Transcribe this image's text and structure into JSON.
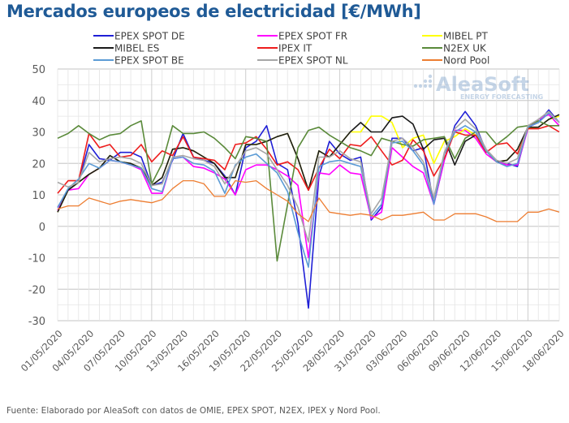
{
  "title": "Mercados europeos de electricidad [€/MWh]",
  "source": "Fuente: Elaborado por AleaSoft con datos de OMIE, EPEX SPOT, N2EX, IPEX y Nord Pool.",
  "watermark": {
    "brand": "AleaSoft",
    "tagline": "ENERGY FORECASTING"
  },
  "chart_data": {
    "type": "line",
    "title": "Mercados europeos de electricidad [€/MWh]",
    "xlabel": "",
    "ylabel": "",
    "ylim": [
      -30,
      50
    ],
    "yticks": [
      50,
      40,
      30,
      20,
      10,
      0,
      -10,
      -20,
      -30
    ],
    "grid": true,
    "legend_position": "top",
    "x": [
      "01/05/2020",
      "02/05/2020",
      "03/05/2020",
      "04/05/2020",
      "05/05/2020",
      "06/05/2020",
      "07/05/2020",
      "08/05/2020",
      "09/05/2020",
      "10/05/2020",
      "11/05/2020",
      "12/05/2020",
      "13/05/2020",
      "14/05/2020",
      "15/05/2020",
      "16/05/2020",
      "17/05/2020",
      "18/05/2020",
      "19/05/2020",
      "20/05/2020",
      "21/05/2020",
      "22/05/2020",
      "23/05/2020",
      "24/05/2020",
      "25/05/2020",
      "26/05/2020",
      "27/05/2020",
      "28/05/2020",
      "29/05/2020",
      "30/05/2020",
      "31/05/2020",
      "01/06/2020",
      "02/06/2020",
      "03/06/2020",
      "04/06/2020",
      "05/06/2020",
      "06/06/2020",
      "07/06/2020",
      "08/06/2020",
      "09/06/2020",
      "10/06/2020",
      "11/06/2020",
      "12/06/2020",
      "13/06/2020",
      "14/06/2020",
      "15/06/2020",
      "16/06/2020",
      "17/06/2020",
      "18/06/2020"
    ],
    "xtick_labels": [
      "01/05/2020",
      "04/05/2020",
      "07/05/2020",
      "10/05/2020",
      "13/05/2020",
      "16/05/2020",
      "19/05/2020",
      "22/05/2020",
      "25/05/2020",
      "28/05/2020",
      "31/05/2020",
      "03/06/2020",
      "06/06/2020",
      "09/06/2020",
      "12/06/2020",
      "15/06/2020",
      "18/06/2020"
    ],
    "series": [
      {
        "name": "EPEX SPOT DE",
        "color": "#1f1fd6",
        "values": [
          6,
          11.5,
          14,
          26,
          21.5,
          21,
          23.5,
          23.5,
          22,
          13,
          14,
          21,
          29.5,
          22,
          21,
          20,
          16,
          10,
          25,
          27,
          32,
          20,
          18,
          1,
          -26,
          16,
          27,
          23,
          21,
          22,
          2,
          6,
          28,
          28,
          24,
          25,
          7,
          21,
          32,
          36.5,
          32,
          24,
          20.5,
          20,
          19,
          31.5,
          33,
          37,
          33
        ]
      },
      {
        "name": "EPEX SPOT FR",
        "color": "#ff00ff",
        "values": [
          5,
          11.5,
          12,
          16.5,
          18.5,
          21,
          20.5,
          19.5,
          18,
          10.5,
          10.5,
          21.5,
          22,
          19,
          18.5,
          17,
          15,
          10,
          18,
          19.5,
          19.5,
          18,
          16,
          13,
          -10,
          17,
          16.5,
          19.5,
          17,
          16.5,
          2.5,
          4.5,
          25,
          22,
          19,
          17,
          7,
          21,
          30.5,
          30.5,
          28,
          23,
          20.5,
          19.5,
          19.5,
          31,
          34,
          35.5,
          32
        ]
      },
      {
        "name": "MIBEL PT",
        "color": "#ffff00",
        "values": [
          4.5,
          11.5,
          14,
          16.5,
          18.5,
          22.5,
          20.5,
          20,
          18.5,
          13,
          15.5,
          24.5,
          25,
          24,
          22,
          20,
          15.5,
          15.5,
          26,
          26,
          27,
          28.5,
          29.5,
          21.5,
          11.5,
          24,
          22,
          26,
          30,
          30,
          35,
          35,
          33,
          25,
          28,
          29,
          20,
          27,
          28.5,
          31,
          29,
          24,
          20.5,
          21,
          24.5,
          31,
          31.5,
          34,
          35
        ]
      },
      {
        "name": "MIBEL ES",
        "color": "#1a1a1a",
        "values": [
          4.5,
          11.5,
          14,
          16.5,
          18.5,
          22.5,
          20.5,
          20,
          18.5,
          13,
          15.5,
          24.5,
          25,
          24,
          22,
          20,
          15.5,
          15.5,
          26,
          26,
          27,
          28.5,
          29.5,
          21.5,
          11.5,
          24,
          22,
          26,
          30,
          33,
          30,
          30,
          34.5,
          35,
          32.5,
          24.5,
          27.5,
          28,
          19.5,
          27,
          29,
          24,
          20.5,
          21,
          24.5,
          31.5,
          31.5,
          34,
          35.5
        ]
      },
      {
        "name": "IPEX IT",
        "color": "#ee1c1c",
        "values": [
          10.5,
          14.5,
          14.5,
          29.5,
          25,
          26,
          22,
          22.5,
          26,
          20.5,
          24,
          22.5,
          28.5,
          22,
          21.5,
          21,
          18,
          26,
          26.5,
          28.5,
          24.5,
          19.5,
          20.5,
          18,
          11.5,
          18.5,
          24.5,
          21.5,
          26,
          25.5,
          28.5,
          24,
          19.5,
          21,
          27.5,
          24,
          16,
          21.5,
          30,
          29,
          29,
          23.5,
          26,
          26.5,
          23,
          31,
          31,
          32,
          30
        ]
      },
      {
        "name": "N2EX UK",
        "color": "#5a8a3a",
        "values": [
          28,
          29.5,
          32,
          29.5,
          27.5,
          29,
          29.5,
          32,
          33.5,
          13.5,
          20,
          32,
          29.5,
          29.5,
          30,
          28,
          25,
          21.5,
          28.5,
          28,
          27,
          -11,
          7,
          25,
          30.5,
          31.5,
          29,
          27,
          25,
          24,
          22.5,
          28,
          27,
          26,
          25.5,
          27.5,
          28,
          28.5,
          21.5,
          28,
          30,
          30,
          26,
          28.5,
          31.5,
          32,
          33.5,
          32,
          32
        ]
      },
      {
        "name": "EPEX SPOT BE",
        "color": "#5b9bd5",
        "values": [
          6,
          12,
          15,
          20,
          18.5,
          21,
          20.5,
          19.5,
          18.5,
          12,
          11,
          21.5,
          22,
          20,
          19.5,
          17.5,
          10.5,
          19.5,
          22,
          23,
          20,
          17,
          11,
          -2,
          -13,
          19,
          20.5,
          21,
          20,
          19,
          3,
          7,
          26.5,
          27,
          24,
          19.5,
          7,
          23,
          30,
          32,
          30,
          24,
          20.5,
          19,
          20,
          31.5,
          33,
          36,
          33
        ]
      },
      {
        "name": "EPEX SPOT NL",
        "color": "#a6a6a6",
        "values": [
          14,
          12.5,
          14,
          23.5,
          20.5,
          21.5,
          22,
          21.5,
          20,
          13,
          13.5,
          22,
          22.5,
          21.5,
          21,
          19,
          13.5,
          19,
          24,
          25,
          23,
          18,
          13,
          6,
          -5,
          22,
          22,
          24,
          21.5,
          20.5,
          4,
          9,
          27,
          28,
          25,
          20.5,
          9,
          23.5,
          31,
          34,
          31,
          24.5,
          21,
          20,
          21.5,
          32,
          34,
          36.5,
          33
        ]
      },
      {
        "name": "Nord Pool",
        "color": "#ed7d31",
        "values": [
          5.5,
          6.5,
          6.5,
          9,
          8,
          7,
          8,
          8.5,
          8,
          7.5,
          8.5,
          12,
          14.5,
          14.5,
          13.5,
          9.5,
          9.5,
          14.5,
          14,
          14.5,
          12,
          10,
          8,
          4,
          1.5,
          9,
          4.5,
          4,
          3.5,
          4,
          3.5,
          2,
          3.5,
          3.5,
          4,
          4.5,
          2,
          2,
          4,
          4,
          4,
          3,
          1.5,
          1.5,
          1.5,
          4.5,
          4.5,
          5.5,
          4.5
        ]
      }
    ]
  }
}
